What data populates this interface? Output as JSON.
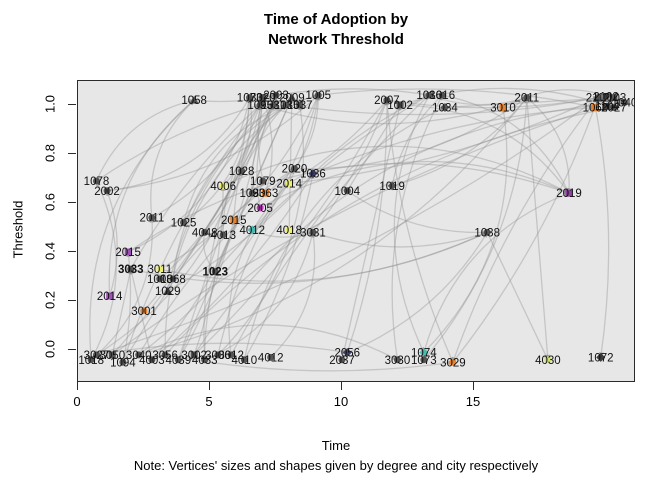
{
  "window": {
    "title_line1": "Time of Adoption by",
    "title_line2": "Network Threshold"
  },
  "axes": {
    "x_label": "Time",
    "y_label": "Threshold",
    "x_tick_labels": [
      "0",
      "5",
      "10",
      "15"
    ],
    "x_tick_values": [
      0,
      5,
      10,
      15
    ],
    "y_tick_labels": [
      "0.0",
      "0.2",
      "0.4",
      "0.6",
      "0.8",
      "1.0"
    ],
    "y_tick_values": [
      0,
      0.2,
      0.4,
      0.6,
      0.8,
      1.0
    ]
  },
  "note": "Note: Vertices' sizes and shapes given by degree and city respectively",
  "colors": {
    "plot_background": "#e7e7e7",
    "edge": "#8f8f8f",
    "arrowhead": "#8a8a8a",
    "default_vertex": "#4d4d4d",
    "orange": "#e87f28",
    "yellow": "#eef06a",
    "magenta": "#c433c4",
    "purple": "#9b4bb5",
    "teal": "#3fb8af",
    "green": "#cbe26a",
    "label_text": "#111111"
  },
  "chart_data": {
    "type": "scatter",
    "subtype": "network-diffusion-graph",
    "title": "Time of Adoption by Network Threshold",
    "xlabel": "Time",
    "ylabel": "Threshold",
    "xlim": [
      0,
      21
    ],
    "ylim": [
      -0.08,
      1.08
    ],
    "grid": false,
    "legend": false,
    "nodes": [
      {
        "l": "1058",
        "t": 4.4,
        "h": 1.02,
        "c": "#4d4d4d",
        "s": "tr"
      },
      {
        "l": "1073",
        "t": 6.5,
        "h": 1.03,
        "c": "#4d4d4d",
        "s": "c"
      },
      {
        "l": "3020",
        "t": 7.0,
        "h": 1.03,
        "c": "#4d4d4d",
        "s": "sq"
      },
      {
        "l": "2003",
        "t": 7.5,
        "h": 1.04,
        "c": "#4d4d4d",
        "s": "c"
      },
      {
        "l": "2009",
        "t": 8.1,
        "h": 1.03,
        "c": "#4d4d4d",
        "s": "tr"
      },
      {
        "l": "1095",
        "t": 6.9,
        "h": 1.0,
        "c": "#4d4d4d",
        "s": "c"
      },
      {
        "l": "1031",
        "t": 7.4,
        "h": 1.0,
        "c": "#4d4d4d",
        "s": "d"
      },
      {
        "l": "1035",
        "t": 7.9,
        "h": 1.0,
        "c": "#4d4d4d",
        "s": "c"
      },
      {
        "l": "1037",
        "t": 8.4,
        "h": 1.0,
        "c": "#4d4d4d",
        "s": "sq"
      },
      {
        "l": "1005",
        "t": 9.1,
        "h": 1.04,
        "c": "#4d4d4d",
        "s": "c"
      },
      {
        "l": "2007",
        "t": 11.7,
        "h": 1.02,
        "c": "#4d4d4d",
        "s": "c"
      },
      {
        "l": "1002",
        "t": 12.2,
        "h": 1.0,
        "c": "#4d4d4d",
        "s": "sq"
      },
      {
        "l": "1036",
        "t": 13.3,
        "h": 1.04,
        "c": "#4d4d4d",
        "s": "c"
      },
      {
        "l": "1016",
        "t": 13.8,
        "h": 1.04,
        "c": "#4d4d4d",
        "s": "c"
      },
      {
        "l": "1034",
        "t": 13.9,
        "h": 0.99,
        "c": "#4d4d4d",
        "s": "d"
      },
      {
        "l": "3010",
        "t": 16.1,
        "h": 0.99,
        "c": "#e87f28",
        "s": "sq"
      },
      {
        "l": "2011",
        "t": 17.0,
        "h": 1.03,
        "c": "#4d4d4d",
        "s": "c"
      },
      {
        "l": "2112",
        "t": 19.7,
        "h": 1.03,
        "c": "#4d4d4d",
        "s": "c"
      },
      {
        "l": "1103",
        "t": 20.3,
        "h": 1.03,
        "c": "#4d4d4d",
        "s": "sq"
      },
      {
        "l": "1060",
        "t": 19.6,
        "h": 0.99,
        "c": "#e87f28",
        "s": "sq"
      },
      {
        "l": "2027",
        "t": 20.3,
        "h": 0.99,
        "c": "#4d4d4d",
        "s": "c"
      },
      {
        "l": "1040",
        "t": 20.7,
        "h": 1.01,
        "c": "#4d4d4d",
        "s": "c"
      },
      {
        "l": "1078",
        "t": 0.7,
        "h": 0.69,
        "c": "#4d4d4d",
        "s": "c"
      },
      {
        "l": "2002",
        "t": 1.1,
        "h": 0.65,
        "c": "#4d4d4d",
        "s": "c"
      },
      {
        "l": "4006",
        "t": 5.5,
        "h": 0.67,
        "c": "#eef06a",
        "s": "c"
      },
      {
        "l": "1028",
        "t": 6.2,
        "h": 0.73,
        "c": "#4d4d4d",
        "s": "c"
      },
      {
        "l": "2020",
        "t": 8.2,
        "h": 0.74,
        "c": "#4d4d4d",
        "s": "c"
      },
      {
        "l": "1079",
        "t": 7.0,
        "h": 0.69,
        "c": "#4d4d4d",
        "s": "c"
      },
      {
        "l": "2014",
        "t": 8.0,
        "h": 0.68,
        "c": "#eef06a",
        "s": "c"
      },
      {
        "l": "3063",
        "t": 7.1,
        "h": 0.64,
        "c": "#e87f28",
        "s": "sq"
      },
      {
        "l": "1093",
        "t": 6.6,
        "h": 0.64,
        "c": "#4d4d4d",
        "s": "c"
      },
      {
        "l": "1036",
        "t": 8.9,
        "h": 0.72,
        "c": "#33335e",
        "s": "d"
      },
      {
        "l": "2005",
        "t": 6.9,
        "h": 0.58,
        "c": "#c433c4",
        "s": "c"
      },
      {
        "l": "1004",
        "t": 10.2,
        "h": 0.65,
        "c": "#4d4d4d",
        "s": "c"
      },
      {
        "l": "1019",
        "t": 11.9,
        "h": 0.67,
        "c": "#4d4d4d",
        "s": "d"
      },
      {
        "l": "2019",
        "t": 18.6,
        "h": 0.64,
        "c": "#8b3a9e",
        "s": "sq"
      },
      {
        "l": "2011",
        "t": 2.8,
        "h": 0.54,
        "c": "#4d4d4d",
        "s": "c"
      },
      {
        "l": "1025",
        "t": 4.0,
        "h": 0.52,
        "c": "#4d4d4d",
        "s": "c"
      },
      {
        "l": "2015",
        "t": 5.9,
        "h": 0.53,
        "c": "#e87f28",
        "s": "sq"
      },
      {
        "l": "4048",
        "t": 4.8,
        "h": 0.48,
        "c": "#4d4d4d",
        "s": "c"
      },
      {
        "l": "4013",
        "t": 5.5,
        "h": 0.47,
        "c": "#4d4d4d",
        "s": "c"
      },
      {
        "l": "4012",
        "t": 6.6,
        "h": 0.49,
        "c": "#3fb8af",
        "s": "d"
      },
      {
        "l": "4018",
        "t": 8.0,
        "h": 0.49,
        "c": "#eef06a",
        "s": "c"
      },
      {
        "l": "3031",
        "t": 8.9,
        "h": 0.48,
        "c": "#4d4d4d",
        "s": "c"
      },
      {
        "l": "1038",
        "t": 15.5,
        "h": 0.48,
        "c": "#4d4d4d",
        "s": "c"
      },
      {
        "l": "2015",
        "t": 1.9,
        "h": 0.4,
        "c": "#9b4bb5",
        "s": "sq"
      },
      {
        "l": "3033",
        "t": 2.0,
        "h": 0.33,
        "c": "#4d4d4d",
        "s": "c",
        "b": 1
      },
      {
        "l": "3011",
        "t": 3.1,
        "h": 0.33,
        "c": "#eef06a",
        "s": "c"
      },
      {
        "l": "1008",
        "t": 3.1,
        "h": 0.29,
        "c": "#4d4d4d",
        "s": "c"
      },
      {
        "l": "1068",
        "t": 3.6,
        "h": 0.29,
        "c": "#4d4d4d",
        "s": "c"
      },
      {
        "l": "1023",
        "t": 5.2,
        "h": 0.32,
        "c": "#4d4d4d",
        "s": "c",
        "b": 1
      },
      {
        "l": "1029",
        "t": 3.4,
        "h": 0.24,
        "c": "#333333",
        "s": "tr"
      },
      {
        "l": "2014",
        "t": 1.2,
        "h": 0.22,
        "c": "#9b4bb5",
        "s": "sq"
      },
      {
        "l": "3001",
        "t": 2.5,
        "h": 0.16,
        "c": "#e87f28",
        "s": "c"
      },
      {
        "l": "3027",
        "t": 0.7,
        "h": -0.02,
        "c": "#4d4d4d",
        "s": "c"
      },
      {
        "l": "1018",
        "t": 0.5,
        "h": -0.04,
        "c": "#4d4d4d",
        "s": "c"
      },
      {
        "l": "3050",
        "t": 1.3,
        "h": -0.02,
        "c": "#4d4d4d",
        "s": "sq"
      },
      {
        "l": "1094",
        "t": 1.7,
        "h": -0.05,
        "c": "#4d4d4d",
        "s": "c"
      },
      {
        "l": "3040",
        "t": 2.3,
        "h": -0.02,
        "c": "#4d4d4d",
        "s": "c"
      },
      {
        "l": "4003",
        "t": 2.8,
        "h": -0.04,
        "c": "#4d4d4d",
        "s": "c"
      },
      {
        "l": "3056",
        "t": 3.3,
        "h": -0.02,
        "c": "#4d4d4d",
        "s": "c"
      },
      {
        "l": "4039",
        "t": 3.8,
        "h": -0.04,
        "c": "#4d4d4d",
        "s": "c"
      },
      {
        "l": "3002",
        "t": 4.4,
        "h": -0.02,
        "c": "#4d4d4d",
        "s": "sq"
      },
      {
        "l": "4033",
        "t": 4.8,
        "h": -0.04,
        "c": "#4d4d4d",
        "s": "c"
      },
      {
        "l": "3006",
        "t": 5.3,
        "h": -0.02,
        "c": "#4d4d4d",
        "s": "c"
      },
      {
        "l": "3012",
        "t": 5.8,
        "h": -0.02,
        "c": "#4d4d4d",
        "s": "c"
      },
      {
        "l": "4010",
        "t": 6.3,
        "h": -0.04,
        "c": "#4d4d4d",
        "s": "c"
      },
      {
        "l": "4012",
        "t": 7.3,
        "h": -0.03,
        "c": "#4d4d4d",
        "s": "c"
      },
      {
        "l": "2056",
        "t": 10.2,
        "h": -0.01,
        "c": "#3a3a6e",
        "s": "d"
      },
      {
        "l": "2037",
        "t": 10.0,
        "h": -0.04,
        "c": "#4d4d4d",
        "s": "c"
      },
      {
        "l": "3030",
        "t": 12.1,
        "h": -0.04,
        "c": "#4d4d4d",
        "s": "c"
      },
      {
        "l": "1074",
        "t": 13.1,
        "h": -0.01,
        "c": "#3fb8af",
        "s": "d"
      },
      {
        "l": "1073",
        "t": 13.1,
        "h": -0.04,
        "c": "#4d4d4d",
        "s": "c"
      },
      {
        "l": "3029",
        "t": 14.2,
        "h": -0.05,
        "c": "#e87f28",
        "s": "c"
      },
      {
        "l": "4030",
        "t": 17.8,
        "h": -0.04,
        "c": "#cbe26a",
        "s": "c"
      },
      {
        "l": "1072",
        "t": 19.8,
        "h": -0.03,
        "c": "#333333",
        "s": "d"
      },
      {
        "l": "2102",
        "t": 20.0,
        "h": 1.035,
        "c": "#4d4d4d",
        "s": "c"
      },
      {
        "l": "1104",
        "t": 20.05,
        "h": 0.995,
        "c": "#4d4d4d",
        "s": "c"
      }
    ],
    "edges": [
      [
        54,
        1
      ],
      [
        56,
        3
      ],
      [
        57,
        5
      ],
      [
        58,
        9
      ],
      [
        59,
        2
      ],
      [
        60,
        7
      ],
      [
        61,
        4
      ],
      [
        62,
        10
      ],
      [
        63,
        6
      ],
      [
        64,
        8
      ],
      [
        65,
        12
      ],
      [
        66,
        14
      ],
      [
        55,
        0
      ],
      [
        57,
        25
      ],
      [
        58,
        26
      ],
      [
        54,
        17
      ],
      [
        56,
        19
      ],
      [
        60,
        20
      ],
      [
        62,
        21
      ],
      [
        58,
        16
      ],
      [
        59,
        31
      ],
      [
        61,
        38
      ],
      [
        63,
        43
      ],
      [
        56,
        46
      ],
      [
        55,
        22
      ],
      [
        45,
        1
      ],
      [
        46,
        5
      ],
      [
        47,
        9
      ],
      [
        48,
        2
      ],
      [
        49,
        7
      ],
      [
        50,
        4
      ],
      [
        51,
        6
      ],
      [
        52,
        0
      ],
      [
        53,
        3
      ],
      [
        50,
        12
      ],
      [
        46,
        44
      ],
      [
        47,
        44
      ],
      [
        45,
        35
      ],
      [
        52,
        23
      ],
      [
        36,
        0
      ],
      [
        37,
        1
      ],
      [
        38,
        5
      ],
      [
        39,
        2
      ],
      [
        40,
        7
      ],
      [
        41,
        9
      ],
      [
        42,
        4
      ],
      [
        43,
        10
      ],
      [
        24,
        1
      ],
      [
        25,
        3
      ],
      [
        26,
        9
      ],
      [
        27,
        5
      ],
      [
        28,
        10
      ],
      [
        29,
        2
      ],
      [
        30,
        7
      ],
      [
        31,
        12
      ],
      [
        32,
        6
      ],
      [
        33,
        11
      ],
      [
        34,
        13
      ],
      [
        22,
        0
      ],
      [
        23,
        1
      ],
      [
        32,
        35
      ],
      [
        24,
        35
      ],
      [
        43,
        44
      ],
      [
        33,
        44
      ],
      [
        34,
        16
      ],
      [
        26,
        16
      ],
      [
        31,
        19
      ],
      [
        28,
        17
      ],
      [
        1,
        9
      ],
      [
        3,
        12
      ],
      [
        5,
        16
      ],
      [
        7,
        17
      ],
      [
        9,
        19
      ],
      [
        10,
        17
      ],
      [
        11,
        20
      ],
      [
        12,
        16
      ],
      [
        14,
        18
      ],
      [
        15,
        21
      ],
      [
        0,
        3
      ],
      [
        2,
        9
      ],
      [
        16,
        74
      ],
      [
        17,
        73
      ],
      [
        10,
        73
      ],
      [
        12,
        71
      ],
      [
        44,
        74
      ],
      [
        19,
        75
      ],
      [
        68,
        10
      ],
      [
        69,
        11
      ],
      [
        70,
        13
      ],
      [
        71,
        15
      ],
      [
        72,
        16
      ],
      [
        73,
        17
      ],
      [
        68,
        44
      ],
      [
        71,
        35
      ],
      [
        54,
        68
      ],
      [
        58,
        70
      ],
      [
        60,
        73
      ],
      [
        11,
        35
      ],
      [
        13,
        35
      ],
      [
        16,
        35
      ],
      [
        55,
        36
      ],
      [
        57,
        45
      ],
      [
        59,
        46
      ],
      [
        61,
        25
      ],
      [
        64,
        26
      ],
      [
        66,
        31
      ],
      [
        67,
        43
      ],
      [
        65,
        28
      ],
      [
        63,
        27
      ],
      [
        62,
        24
      ],
      [
        22,
        5
      ],
      [
        23,
        9
      ],
      [
        36,
        2
      ],
      [
        37,
        7
      ],
      [
        38,
        43
      ],
      [
        39,
        50
      ],
      [
        51,
        31
      ],
      [
        49,
        26
      ]
    ]
  }
}
